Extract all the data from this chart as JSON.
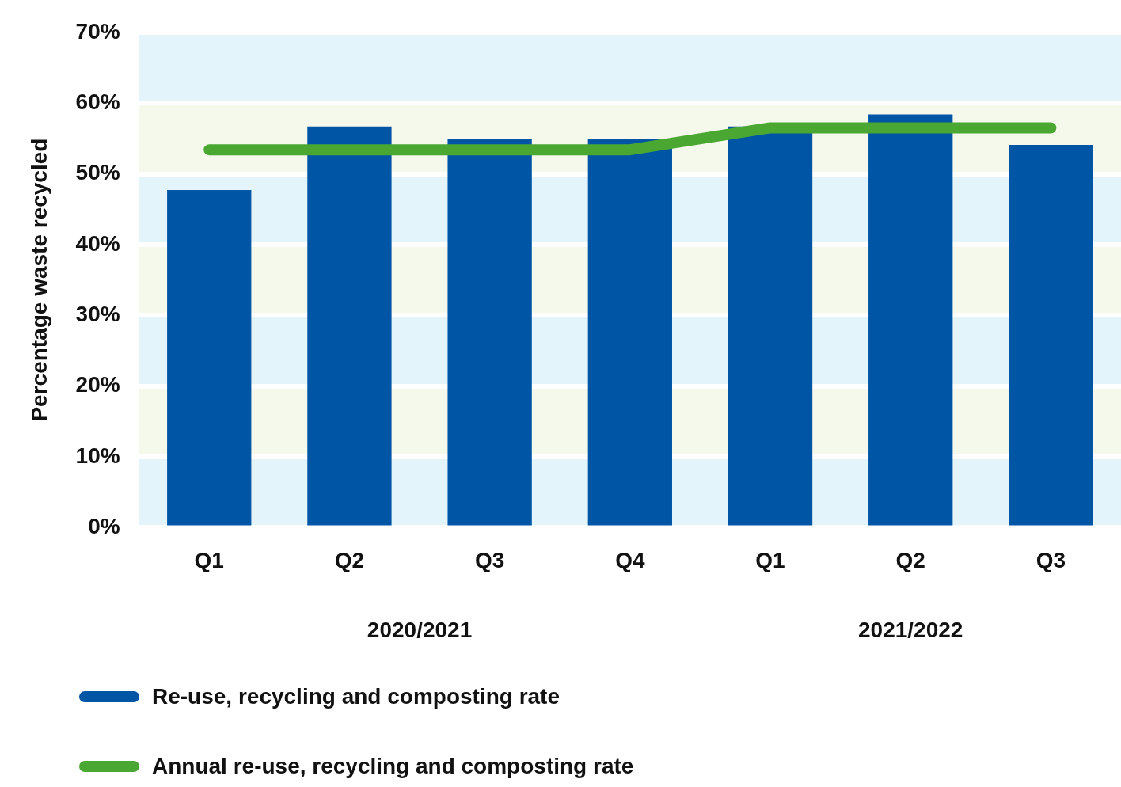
{
  "chart_data": {
    "type": "bar",
    "ylabel": "Percentage waste recycled",
    "categories": [
      "Q1",
      "Q2",
      "Q3",
      "Q4",
      "Q1",
      "Q2",
      "Q3"
    ],
    "series": [
      {
        "name": "Re-use, recycling and composting rate",
        "color": "#0055a5",
        "values": [
          47.7,
          56.7,
          54.9,
          54.9,
          56.7,
          58.4,
          54.1
        ]
      },
      {
        "name": "Annual re-use, recycling and composting rate",
        "type": "line",
        "color": "#4aa832",
        "values": [
          53.4,
          53.4,
          53.4,
          53.4,
          56.5,
          56.5,
          56.5
        ]
      }
    ],
    "ylim": [
      0,
      70
    ],
    "yticks": [
      {
        "value": 0,
        "label": "0%"
      },
      {
        "value": 10,
        "label": "10%"
      },
      {
        "value": 20,
        "label": "20%"
      },
      {
        "value": 30,
        "label": "30%"
      },
      {
        "value": 40,
        "label": "40%"
      },
      {
        "value": 50,
        "label": "50%"
      },
      {
        "value": 60,
        "label": "60%"
      },
      {
        "value": 70,
        "label": "70%"
      }
    ],
    "annotations": [
      "2020/2021",
      "2021/2022"
    ],
    "bands": [
      {
        "axis": "y",
        "from": 0,
        "to": 10,
        "color": "#e3f4fb"
      },
      {
        "axis": "y",
        "from": 10,
        "to": 20,
        "color": "#f4f9ec"
      },
      {
        "axis": "y",
        "from": 20,
        "to": 30,
        "color": "#e3f4fb"
      },
      {
        "axis": "y",
        "from": 30,
        "to": 40,
        "color": "#f4f9ec"
      },
      {
        "axis": "y",
        "from": 40,
        "to": 50,
        "color": "#e3f4fb"
      },
      {
        "axis": "y",
        "from": 50,
        "to": 60,
        "color": "#f4f9ec"
      },
      {
        "axis": "y",
        "from": 60,
        "to": 70,
        "color": "#e3f4fb"
      }
    ],
    "grid": "y",
    "legend": "bottom left",
    "marker": "none",
    "line_style": "solid"
  }
}
